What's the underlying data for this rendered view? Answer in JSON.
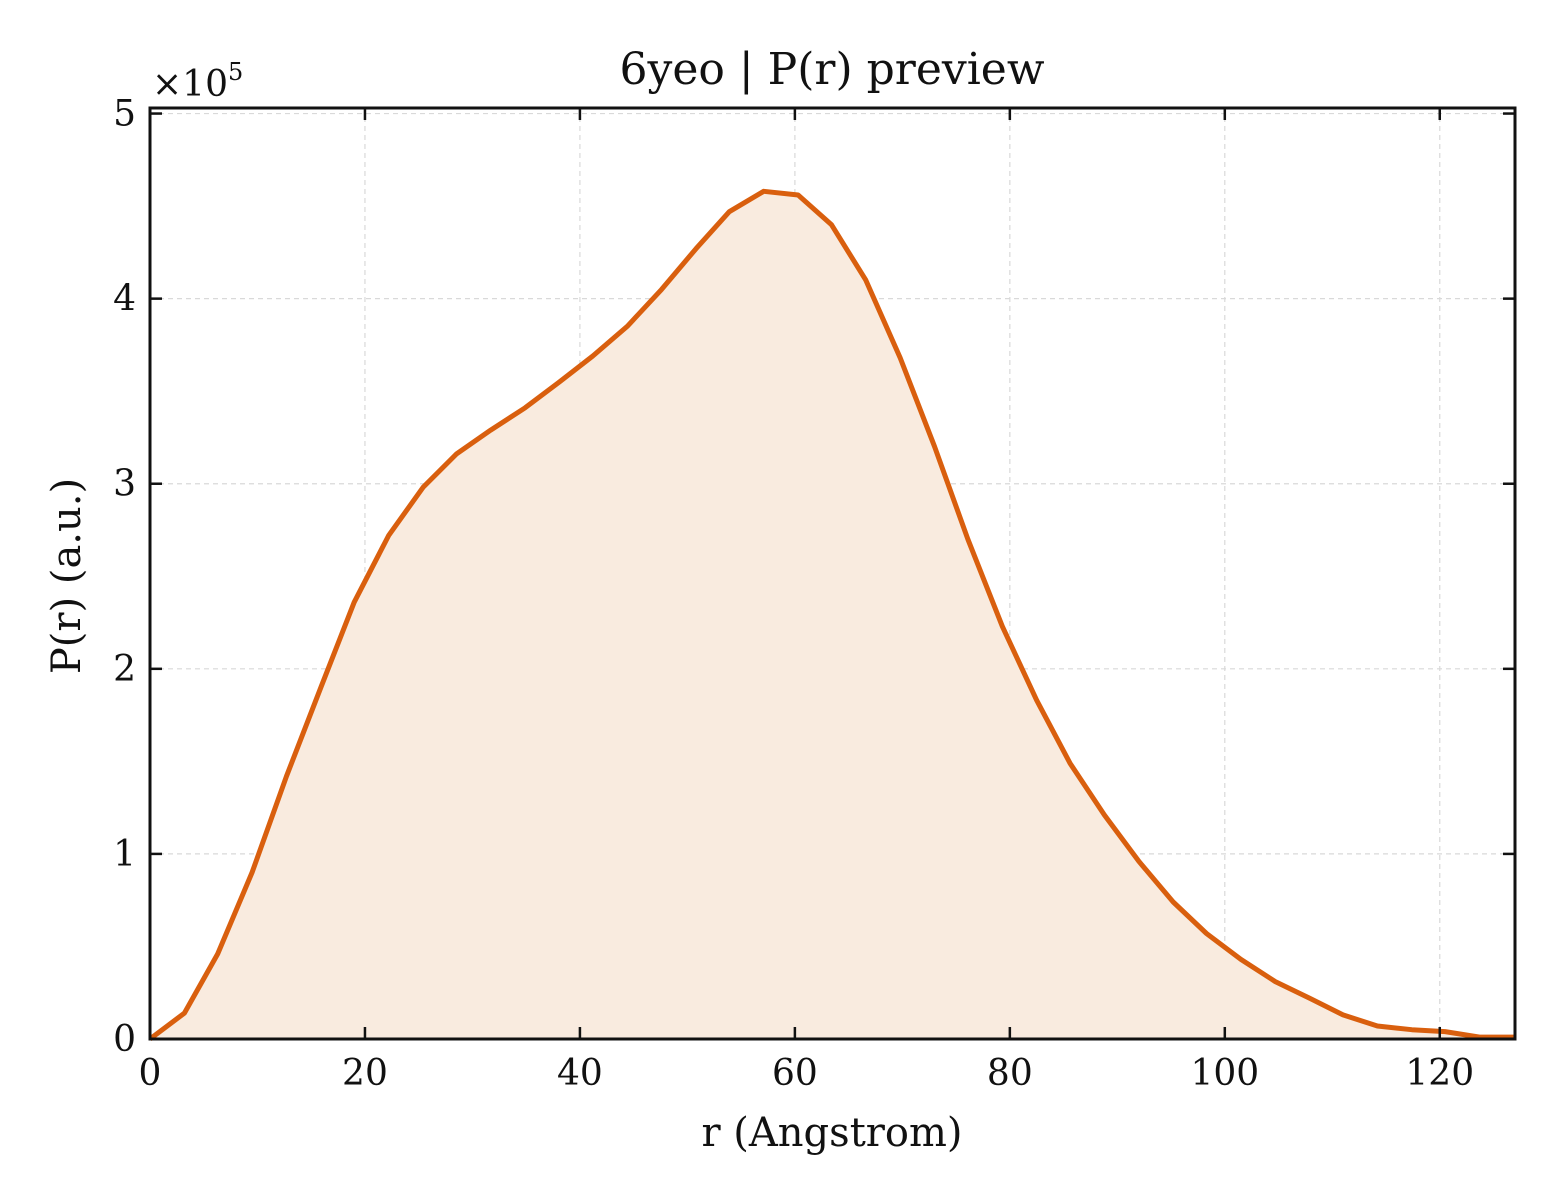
{
  "chart_data": {
    "type": "area",
    "title": "6yeo | P(r) preview",
    "xlabel": "r (Angstrom)",
    "ylabel": "P(r) (a.u.)",
    "y_multiplier_label": "×10",
    "y_multiplier_exponent": "5",
    "xlim": [
      0,
      127
    ],
    "ylim": [
      0,
      5.03
    ],
    "y_scale_factor": 100000,
    "xticks": [
      0,
      20,
      40,
      60,
      80,
      100,
      120
    ],
    "xtick_labels": [
      "0",
      "20",
      "40",
      "60",
      "80",
      "100",
      "120"
    ],
    "yticks": [
      0,
      1,
      2,
      3,
      4,
      5
    ],
    "ytick_labels": [
      "0",
      "1",
      "2",
      "3",
      "4",
      "5"
    ],
    "grid": true,
    "line_color": "#d95f0e",
    "fill_color": "#f9ebdf",
    "series": [
      {
        "x": [
          0,
          3.2,
          6.3,
          9.5,
          12.7,
          15.9,
          19.0,
          22.2,
          25.4,
          28.5,
          31.7,
          34.9,
          38.1,
          41.2,
          44.4,
          47.6,
          50.8,
          53.9,
          57.1,
          60.3,
          63.4,
          66.6,
          69.8,
          73.0,
          76.1,
          79.3,
          82.5,
          85.6,
          88.8,
          92.0,
          95.2,
          98.3,
          101.5,
          104.7,
          107.9,
          111.0,
          114.2,
          117.4,
          120.5,
          123.7,
          126.9
        ],
        "y": [
          0,
          0.14,
          0.46,
          0.9,
          1.42,
          1.9,
          2.36,
          2.72,
          2.98,
          3.16,
          3.29,
          3.41,
          3.55,
          3.69,
          3.85,
          4.05,
          4.27,
          4.47,
          4.58,
          4.56,
          4.4,
          4.1,
          3.68,
          3.2,
          2.7,
          2.23,
          1.83,
          1.49,
          1.21,
          0.96,
          0.74,
          0.57,
          0.43,
          0.31,
          0.22,
          0.13,
          0.07,
          0.05,
          0.04,
          0.01,
          0.01
        ]
      }
    ]
  }
}
